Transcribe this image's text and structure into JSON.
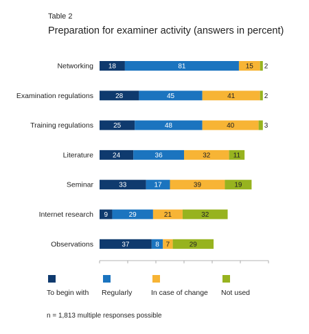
{
  "table_label": "Table 2",
  "title": "Preparation for examiner activity (answers in percent)",
  "footnote": "n = 1,813 multiple responses possible",
  "colors": {
    "to_begin_with": "#0f3a6e",
    "regularly": "#1b74bf",
    "in_case_of_change": "#f7b435",
    "not_used": "#97b31f"
  },
  "chart_data": {
    "type": "bar",
    "orientation": "horizontal",
    "stacked": true,
    "categories": [
      "Networking",
      "Examination regulations",
      "Training regulations",
      "Literature",
      "Seminar",
      "Internet research",
      "Observations"
    ],
    "series": [
      {
        "name": "To begin with",
        "values": [
          18,
          28,
          25,
          24,
          33,
          9,
          37
        ]
      },
      {
        "name": "Regularly",
        "values": [
          81,
          45,
          48,
          36,
          17,
          29,
          8
        ]
      },
      {
        "name": "In case of change",
        "values": [
          15,
          41,
          40,
          32,
          39,
          21,
          7
        ]
      },
      {
        "name": "Not used",
        "values": [
          2,
          2,
          3,
          11,
          19,
          32,
          29
        ]
      }
    ],
    "title": "Preparation for examiner activity (answers in percent)",
    "xlabel": "",
    "ylabel": "",
    "xlim": [
      0,
      120
    ],
    "grid": false,
    "legend": "bottom"
  }
}
